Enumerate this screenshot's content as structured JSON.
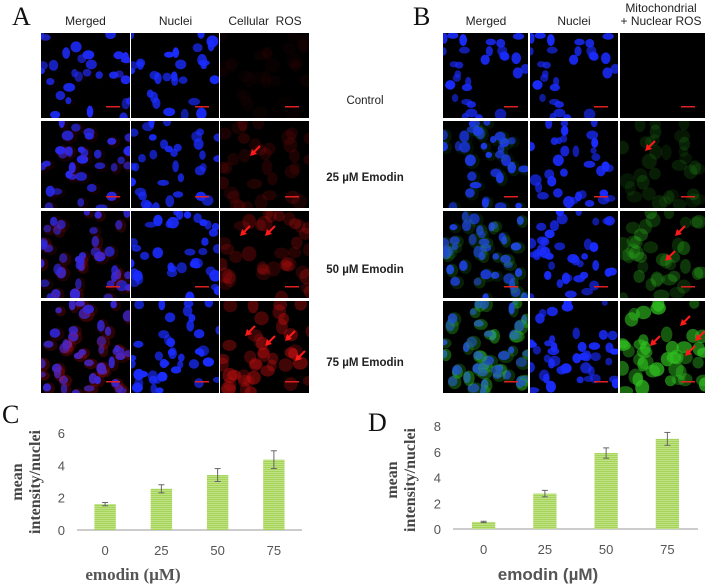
{
  "panels": {
    "A": {
      "label": "A",
      "columns": [
        "Merged",
        "Nuclei",
        "Cellular  ROS"
      ],
      "ros_color": "#d01010"
    },
    "B": {
      "label": "B",
      "columns": [
        "Merged",
        "Nuclei",
        "Mitochondrial",
        "+ Nuclear ROS"
      ],
      "ros_color": "#30c020"
    },
    "C": {
      "label": "C"
    },
    "D": {
      "label": "D"
    }
  },
  "conditions": [
    "Control",
    "25 µM Emodin",
    "50 µM Emodin",
    "75 µM Emodin"
  ],
  "colors": {
    "nuclei": "#1a2cff",
    "bar": "#a6d45a",
    "arrow": "#ff1a1a",
    "scale_bar": "#e02020"
  },
  "chart_data": [
    {
      "type": "bar",
      "panel": "C",
      "categories": [
        "0",
        "25",
        "50",
        "75"
      ],
      "values": [
        1.6,
        2.55,
        3.4,
        4.35
      ],
      "errors": [
        0.1,
        0.25,
        0.4,
        0.55
      ],
      "xlabel": "emodin (µM)",
      "ylabel": "mean intensity/nuclei",
      "ylabel_lines": [
        "mean",
        "intensity/nuclei"
      ],
      "ylim": [
        0,
        6
      ],
      "yticks": [
        "0",
        "2",
        "4",
        "6"
      ],
      "grid": false
    },
    {
      "type": "bar",
      "panel": "D",
      "categories": [
        "0",
        "25",
        "50",
        "75"
      ],
      "values": [
        0.55,
        2.75,
        5.9,
        7.0
      ],
      "errors": [
        0.05,
        0.25,
        0.4,
        0.5
      ],
      "xlabel": "emodin (µM)",
      "ylabel": "mean intensity/nuclei",
      "ylabel_lines": [
        "mean",
        "intensity/nuclei"
      ],
      "ylim": [
        0,
        8
      ],
      "yticks": [
        "0",
        "2",
        "4",
        "6",
        "8"
      ],
      "grid": false
    }
  ]
}
